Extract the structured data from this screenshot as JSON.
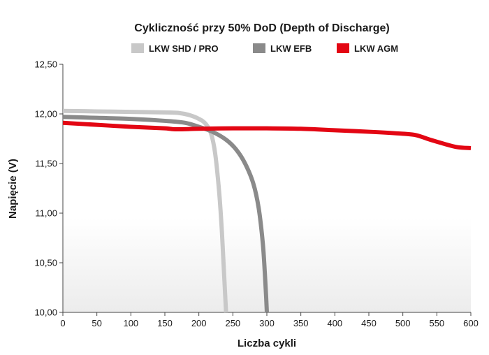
{
  "chart_data": {
    "type": "line",
    "title": "Cykliczność przy 50% DoD (Depth of Discharge)",
    "xlabel": "Liczba cykli",
    "ylabel": "Napięcie (V)",
    "xlim": [
      0,
      600
    ],
    "ylim": [
      10.0,
      12.5
    ],
    "x_ticks": [
      0,
      50,
      100,
      150,
      200,
      250,
      300,
      350,
      400,
      450,
      500,
      550,
      600
    ],
    "x_tick_labels": [
      "0",
      "50",
      "100",
      "150",
      "200",
      "250",
      "300",
      "350",
      "400",
      "450",
      "500",
      "550",
      "600"
    ],
    "y_ticks": [
      10.0,
      10.5,
      11.0,
      11.5,
      12.0,
      12.5
    ],
    "y_tick_labels": [
      "10,00",
      "10,50",
      "11,00",
      "11,50",
      "12,00",
      "12,50"
    ],
    "grid": false,
    "legend_position": "top",
    "series": [
      {
        "name": "LKW SHD / PRO",
        "color": "#c8c8c8",
        "points": [
          [
            0,
            12.03
          ],
          [
            50,
            12.025
          ],
          [
            100,
            12.02
          ],
          [
            150,
            12.015
          ],
          [
            170,
            12.01
          ],
          [
            185,
            11.99
          ],
          [
            200,
            11.95
          ],
          [
            210,
            11.9
          ],
          [
            218,
            11.8
          ],
          [
            224,
            11.6
          ],
          [
            230,
            11.2
          ],
          [
            234,
            10.8
          ],
          [
            237,
            10.4
          ],
          [
            240,
            10.0
          ]
        ]
      },
      {
        "name": "LKW EFB",
        "color": "#8a8a8a",
        "points": [
          [
            0,
            11.97
          ],
          [
            50,
            11.96
          ],
          [
            100,
            11.95
          ],
          [
            150,
            11.93
          ],
          [
            180,
            11.91
          ],
          [
            200,
            11.87
          ],
          [
            220,
            11.82
          ],
          [
            240,
            11.74
          ],
          [
            255,
            11.64
          ],
          [
            268,
            11.5
          ],
          [
            280,
            11.3
          ],
          [
            288,
            11.05
          ],
          [
            294,
            10.7
          ],
          [
            297,
            10.4
          ],
          [
            299,
            10.15
          ],
          [
            300,
            10.0
          ]
        ]
      },
      {
        "name": "LKW AGM",
        "color": "#e30613",
        "points": [
          [
            0,
            11.91
          ],
          [
            50,
            11.89
          ],
          [
            100,
            11.87
          ],
          [
            150,
            11.855
          ],
          [
            165,
            11.845
          ],
          [
            200,
            11.85
          ],
          [
            250,
            11.855
          ],
          [
            300,
            11.855
          ],
          [
            350,
            11.85
          ],
          [
            400,
            11.835
          ],
          [
            450,
            11.82
          ],
          [
            500,
            11.8
          ],
          [
            520,
            11.785
          ],
          [
            540,
            11.74
          ],
          [
            560,
            11.7
          ],
          [
            580,
            11.665
          ],
          [
            600,
            11.655
          ]
        ]
      }
    ]
  }
}
